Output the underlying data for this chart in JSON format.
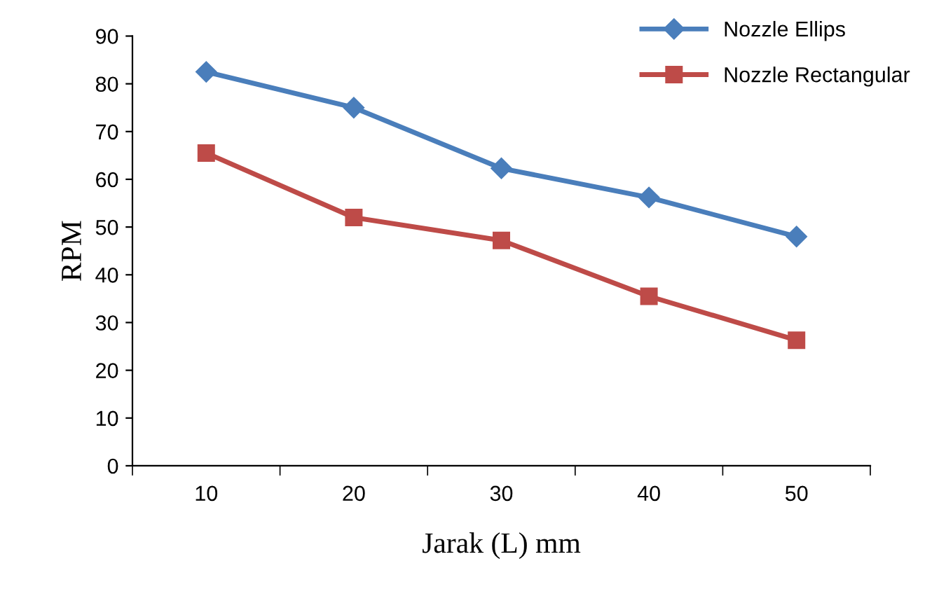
{
  "chart_data": {
    "type": "line",
    "xlabel": "Jarak (L) mm",
    "ylabel": "RPM",
    "categories": [
      "10",
      "20",
      "30",
      "40",
      "50"
    ],
    "series": [
      {
        "name": "Nozzle Ellips",
        "color": "#4a7ebb",
        "marker": "diamond",
        "values": [
          82.5,
          75,
          62.3,
          56.2,
          48
        ]
      },
      {
        "name": "Nozzle Rectangular",
        "color": "#be4b48",
        "marker": "square",
        "values": [
          65.5,
          52,
          47.2,
          35.5,
          26.3
        ]
      }
    ],
    "ylim": [
      0,
      90
    ],
    "yticks": [
      0,
      10,
      20,
      30,
      40,
      50,
      60,
      70,
      80,
      90
    ],
    "grid": false,
    "legend": "top right",
    "line_style": "solid"
  }
}
